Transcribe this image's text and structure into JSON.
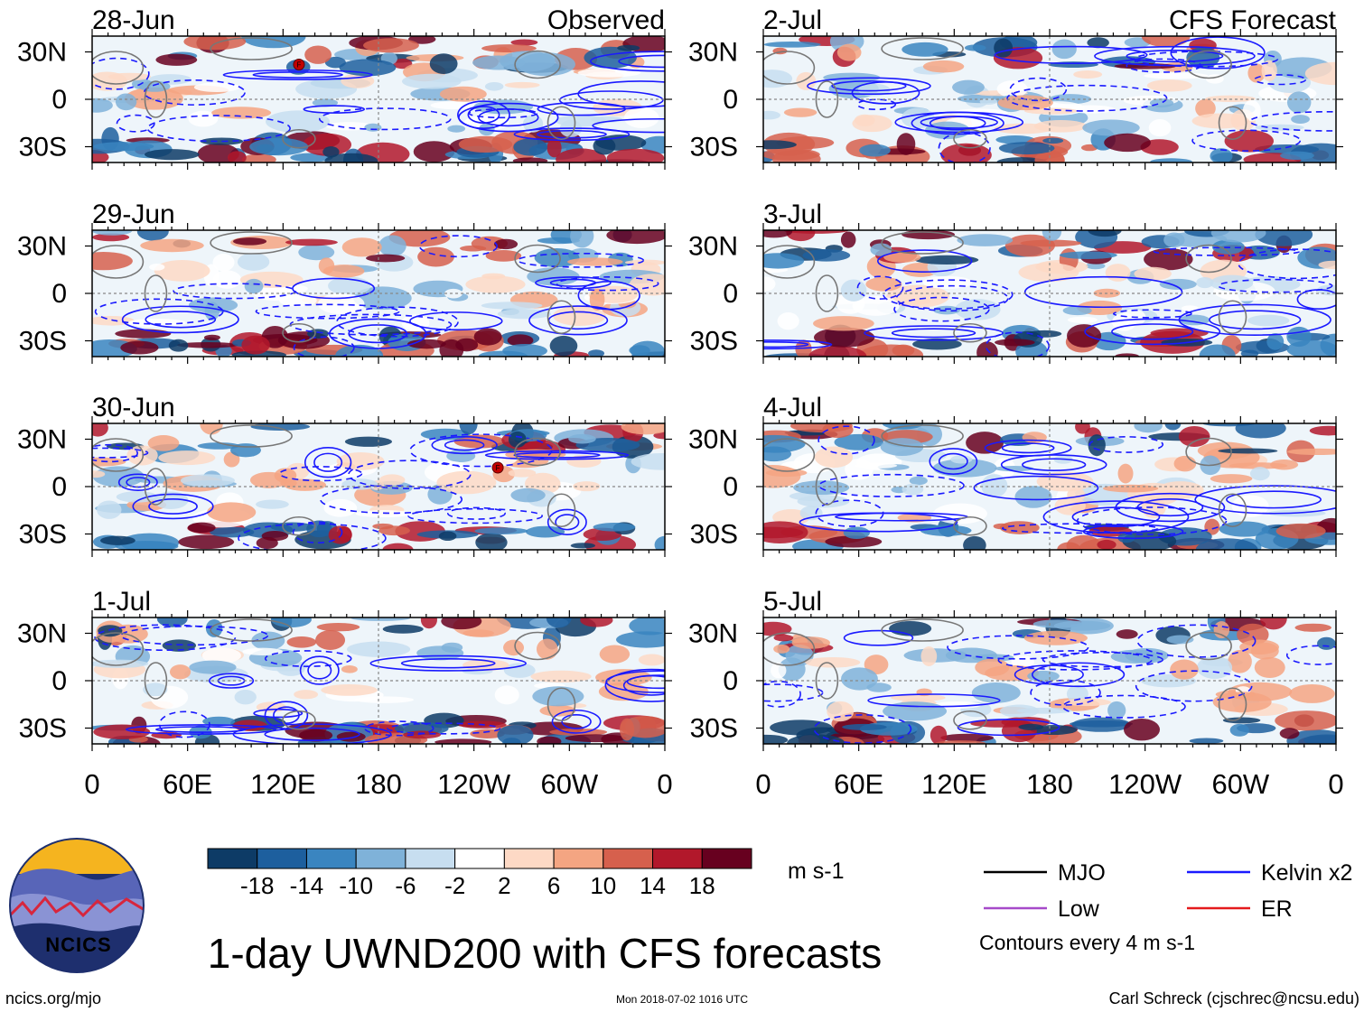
{
  "chart_data": {
    "type": "heatmap",
    "title": "1-day UWND200 with CFS forecasts",
    "variable": "200-hPa zonal wind anomaly",
    "units": "m s-1",
    "header_left_label": "Observed",
    "header_right_label": "CFS Forecast",
    "observed_panels": [
      "28-Jun",
      "29-Jun",
      "30-Jun",
      "1-Jul"
    ],
    "forecast_panels": [
      "2-Jul",
      "3-Jul",
      "4-Jul",
      "5-Jul"
    ],
    "y_ticks": [
      {
        "label": "30N",
        "lat": 30
      },
      {
        "label": "0",
        "lat": 0
      },
      {
        "label": "30S",
        "lat": -30
      }
    ],
    "ylim": [
      -40,
      40
    ],
    "x_ticks": [
      {
        "label": "0",
        "lon": 0
      },
      {
        "label": "60E",
        "lon": 60
      },
      {
        "label": "120E",
        "lon": 120
      },
      {
        "label": "180",
        "lon": 180
      },
      {
        "label": "120W",
        "lon": 240
      },
      {
        "label": "60W",
        "lon": 300
      },
      {
        "label": "0",
        "lon": 360
      }
    ],
    "xlim": [
      0,
      360
    ],
    "colorbar": {
      "colors": [
        "#0d3b66",
        "#1d5f9e",
        "#3a85c0",
        "#7fb2d9",
        "#c7def0",
        "#ffffff",
        "#fdd9c5",
        "#f4a582",
        "#d6604d",
        "#b2182b",
        "#67001f"
      ],
      "labels": [
        "-18",
        "-14",
        "-10",
        "-6",
        "-2",
        "2",
        "6",
        "10",
        "14",
        "18"
      ],
      "units": "m s-1"
    },
    "contour_legend": [
      {
        "name": "MJO",
        "color": "#000000"
      },
      {
        "name": "Kelvin x2",
        "color": "#1a1aff"
      },
      {
        "name": "Low",
        "color": "#a64ac9"
      },
      {
        "name": "ER",
        "color": "#e41a1c"
      }
    ],
    "contour_note": "Contours every 4 m s-1"
  },
  "footer": {
    "logo_text": "NCICS",
    "url": "ncics.org/mjo",
    "timestamp": "Mon 2018-07-02 1016 UTC",
    "credit": "Carl Schreck (cjschrec@ncsu.edu)"
  }
}
